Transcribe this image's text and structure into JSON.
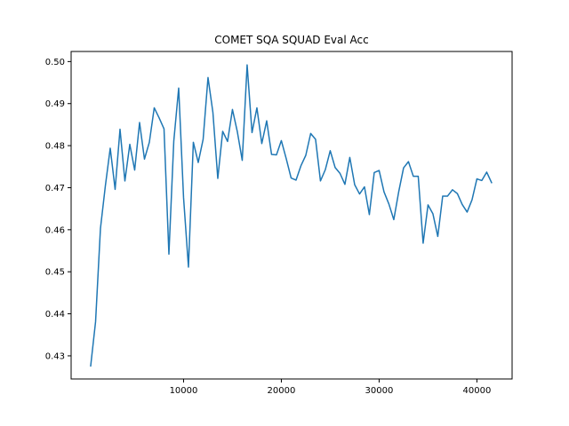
{
  "chart_data": {
    "type": "line",
    "title": "COMET SQA SQUAD Eval Acc",
    "xlabel": "",
    "ylabel": "",
    "xlim": [
      -1500,
      43600
    ],
    "ylim": [
      0.4245,
      0.5024
    ],
    "xticks": [
      10000,
      20000,
      30000,
      40000
    ],
    "xtick_labels": [
      "10000",
      "20000",
      "30000",
      "40000"
    ],
    "yticks": [
      0.43,
      0.44,
      0.45,
      0.46,
      0.47,
      0.48,
      0.49,
      0.5
    ],
    "ytick_labels": [
      "0.43",
      "0.44",
      "0.45",
      "0.46",
      "0.47",
      "0.48",
      "0.49",
      "0.50"
    ],
    "grid": false,
    "series": [
      {
        "color": "#1f77b4",
        "x": [
          500,
          1000,
          1500,
          2000,
          2500,
          3000,
          3500,
          4000,
          4500,
          5000,
          5500,
          6000,
          6500,
          7000,
          7500,
          8000,
          8500,
          9000,
          9500,
          10000,
          10500,
          11000,
          11500,
          12000,
          12500,
          13000,
          13500,
          14000,
          14500,
          15000,
          15500,
          16000,
          16500,
          17000,
          17500,
          18000,
          18500,
          19000,
          19500,
          20000,
          20500,
          21000,
          21500,
          22000,
          22500,
          23000,
          23500,
          24000,
          24500,
          25000,
          25500,
          26000,
          26500,
          27000,
          27500,
          28000,
          28500,
          29000,
          29500,
          30000,
          30500,
          31000,
          31500,
          32000,
          32500,
          33000,
          33500,
          34000,
          34500,
          35000,
          35500,
          36000,
          36500,
          37000,
          37500,
          38000,
          38500,
          39000,
          39500,
          40000,
          40500,
          41000,
          41500
        ],
        "y": [
          0.4276,
          0.4381,
          0.4603,
          0.4704,
          0.4794,
          0.4696,
          0.4839,
          0.4716,
          0.4803,
          0.4742,
          0.4855,
          0.4768,
          0.4808,
          0.489,
          0.4866,
          0.484,
          0.4542,
          0.4811,
          0.4937,
          0.4676,
          0.4511,
          0.4808,
          0.476,
          0.4815,
          0.4962,
          0.4879,
          0.4722,
          0.4834,
          0.481,
          0.4886,
          0.4833,
          0.4765,
          0.4992,
          0.4831,
          0.489,
          0.4805,
          0.4859,
          0.4779,
          0.4778,
          0.4812,
          0.4769,
          0.4723,
          0.4718,
          0.4752,
          0.4777,
          0.4829,
          0.4815,
          0.4716,
          0.4743,
          0.4788,
          0.4748,
          0.4734,
          0.4708,
          0.4772,
          0.4707,
          0.4685,
          0.4702,
          0.4636,
          0.4736,
          0.4741,
          0.469,
          0.4661,
          0.4624,
          0.469,
          0.4747,
          0.4762,
          0.4727,
          0.4727,
          0.4568,
          0.4659,
          0.4638,
          0.4584,
          0.468,
          0.468,
          0.4695,
          0.4686,
          0.466,
          0.4642,
          0.4671,
          0.4721,
          0.4717,
          0.4737,
          0.4712
        ]
      }
    ]
  }
}
